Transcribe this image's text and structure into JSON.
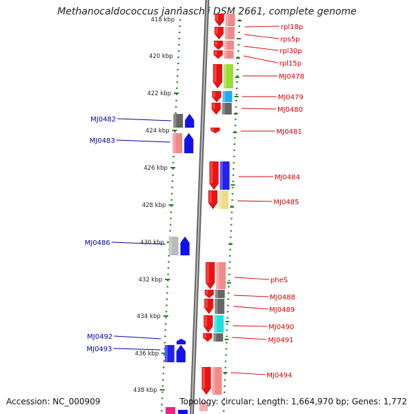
{
  "title": "Methanocaldococcus jannaschii DSM 2661, complete genome",
  "footer": {
    "accession": "Accession: NC_000909",
    "summary": "Topology: circular; Length: 1,664,970 bp; Genes: 1,772"
  },
  "colors": {
    "forward_label": "#d40000",
    "reverse_label": "#0000aa",
    "tick": "#2a7a2a",
    "backbone": "#8a8a8a"
  },
  "kbp_ticks": [
    "418 kbp",
    "420 kbp",
    "422 kbp",
    "424 kbp",
    "426 kbp",
    "428 kbp",
    "430 kbp",
    "432 kbp",
    "434 kbp",
    "436 kbp",
    "438 kbp"
  ],
  "genes_forward": [
    "rpl18p",
    "rps5p",
    "rpl30p",
    "rpl15p",
    "MJ0478",
    "MJ0479",
    "MJ0480",
    "MJ0481",
    "MJ0484",
    "MJ0485",
    "pheS",
    "MJ0488",
    "MJ0489",
    "MJ0490",
    "MJ0491",
    "MJ0494"
  ],
  "genes_reverse": [
    "MJ0482",
    "MJ0483",
    "MJ0486",
    "MJ0492",
    "MJ0493"
  ]
}
